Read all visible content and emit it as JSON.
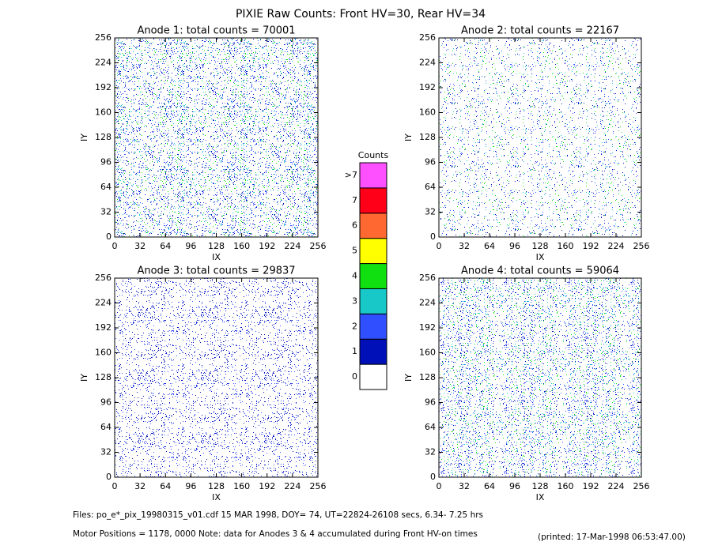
{
  "title": "PIXIE Raw Counts:  Front HV=30, Rear HV=34",
  "chart_data": [
    {
      "type": "heatmap",
      "title": "Anode 1: total counts = 70001",
      "xlabel": "IX",
      "ylabel": "IY",
      "xlim": [
        0,
        256
      ],
      "xticks": [
        0,
        32,
        64,
        96,
        128,
        160,
        192,
        224,
        256
      ],
      "ylim": [
        0,
        256
      ],
      "yticks": [
        0,
        32,
        64,
        96,
        128,
        160,
        192,
        224,
        256
      ]
    },
    {
      "type": "heatmap",
      "title": "Anode 2: total counts = 22167",
      "xlabel": "IX",
      "ylabel": "IY",
      "xlim": [
        0,
        256
      ],
      "xticks": [
        0,
        32,
        64,
        96,
        128,
        160,
        192,
        224,
        256
      ],
      "ylim": [
        0,
        256
      ],
      "yticks": [
        0,
        32,
        64,
        96,
        128,
        160,
        192,
        224,
        256
      ]
    },
    {
      "type": "heatmap",
      "title": "Anode 3: total counts = 29837",
      "xlabel": "IX",
      "ylabel": "IY",
      "xlim": [
        0,
        256
      ],
      "xticks": [
        0,
        32,
        64,
        96,
        128,
        160,
        192,
        224,
        256
      ],
      "ylim": [
        0,
        256
      ],
      "yticks": [
        0,
        32,
        64,
        96,
        128,
        160,
        192,
        224,
        256
      ]
    },
    {
      "type": "heatmap",
      "title": "Anode 4: total counts = 59064",
      "xlabel": "IX",
      "ylabel": "IY",
      "xlim": [
        0,
        256
      ],
      "xticks": [
        0,
        32,
        64,
        96,
        128,
        160,
        192,
        224,
        256
      ],
      "ylim": [
        0,
        256
      ],
      "yticks": [
        0,
        32,
        64,
        96,
        128,
        160,
        192,
        224,
        256
      ]
    }
  ],
  "colorbar": {
    "title": "Counts",
    "levels": [
      {
        "label": "0",
        "color": "#ffffff"
      },
      {
        "label": "1",
        "color": "#0010b8"
      },
      {
        "label": "2",
        "color": "#3050ff"
      },
      {
        "label": "3",
        "color": "#18c8c8"
      },
      {
        "label": "4",
        "color": "#10e010"
      },
      {
        "label": "5",
        "color": "#ffff00"
      },
      {
        "label": "6",
        "color": "#ff6830"
      },
      {
        "label": "7",
        "color": "#ff0018"
      },
      {
        "label": ">7",
        "color": "#ff50ff"
      }
    ]
  },
  "footer": {
    "files": "Files: po_e*_pix_19980315_v01.cdf    15 MAR 1998, DOY= 74, UT=22824-26108 secs,  6.34- 7.25 hrs",
    "motor": "Motor Positions = 1178, 0000   Note: data for Anodes 3 & 4 accumulated during Front HV-on times",
    "printed": "(printed: 17-Mar-1998 06:53:47.00)"
  }
}
